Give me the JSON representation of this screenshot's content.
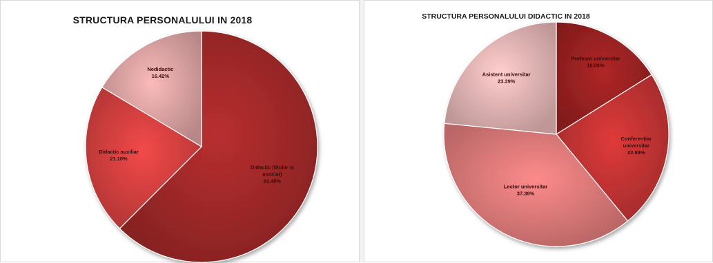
{
  "chart_data": [
    {
      "type": "pie",
      "title": "STRUCTURA PERSONALULUI IN 2018",
      "slices": [
        {
          "label": "Didactic (titular și asociat)",
          "value": 62.48,
          "display": "62.48%",
          "color": "#a52a2a"
        },
        {
          "label": "Didactic auxiliar",
          "value": 21.1,
          "display": "21.10%",
          "color": "#d94141"
        },
        {
          "label": "Nedidactic",
          "value": 16.42,
          "display": "16.42%",
          "color": "#e0a6a6"
        }
      ]
    },
    {
      "type": "pie",
      "title": "STRUCTURA PERSONALULUI DIDACTIC IN 2018",
      "slices": [
        {
          "label": "Profesor universitar",
          "value": 16.06,
          "display": "16.06%",
          "color": "#9e2222"
        },
        {
          "label": "Conferențiar universitar",
          "value": 22.89,
          "display": "22.89%",
          "color": "#c73434"
        },
        {
          "label": "Lector universitar",
          "value": 37.39,
          "display": "37.39%",
          "color": "#e27c7c"
        },
        {
          "label": "Asistent universitar",
          "value": 23.39,
          "display": "23.39%",
          "color": "#e9b8b8"
        }
      ]
    }
  ]
}
